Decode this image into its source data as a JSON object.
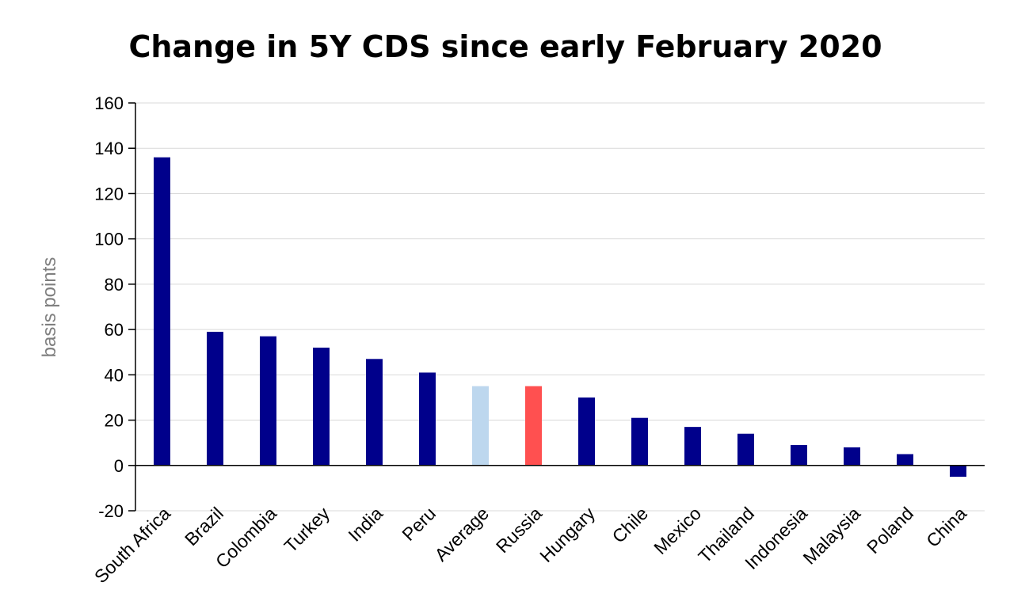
{
  "chart_data": {
    "type": "bar",
    "title": "Change in 5Y CDS since early February 2020",
    "ylabel": "basis points",
    "xlabel": "",
    "ylim": [
      -20,
      160
    ],
    "yticks": [
      -20,
      0,
      20,
      40,
      60,
      80,
      100,
      120,
      140,
      160
    ],
    "grid": true,
    "categories": [
      "South Africa",
      "Brazil",
      "Colombia",
      "Turkey",
      "India",
      "Peru",
      "Average",
      "Russia",
      "Hungary",
      "Chile",
      "Mexico",
      "Thailand",
      "Indonesia",
      "Malaysia",
      "Poland",
      "China"
    ],
    "values": [
      136,
      59,
      57,
      52,
      47,
      41,
      35,
      35,
      30,
      21,
      17,
      14,
      9,
      8,
      5,
      -5
    ],
    "colors": {
      "default": "#00008b",
      "Average": "#bdd7ee",
      "Russia": "#ff5050"
    }
  }
}
